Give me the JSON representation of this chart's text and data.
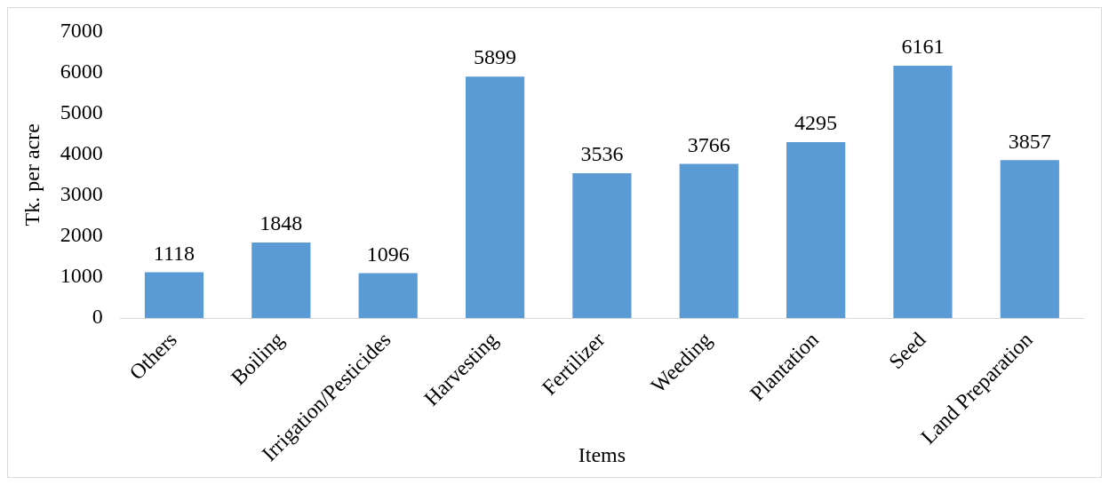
{
  "chart_data": {
    "type": "bar",
    "xlabel": "Items",
    "ylabel": "Tk. per acre",
    "categories": [
      "Others",
      "Boiling",
      "Irrigation/Pesticides",
      "Harvesting",
      "Fertilizer",
      "Weeding",
      "Plantation",
      "Seed",
      "Land Preparation"
    ],
    "values": [
      1118,
      1848,
      1096,
      5899,
      3536,
      3766,
      4295,
      6161,
      3857
    ],
    "color": "#5b9bd5",
    "ylim": [
      0,
      7000
    ],
    "yticks": [
      0,
      1000,
      2000,
      3000,
      4000,
      5000,
      6000,
      7000
    ],
    "grid": false,
    "data_labels": true
  }
}
